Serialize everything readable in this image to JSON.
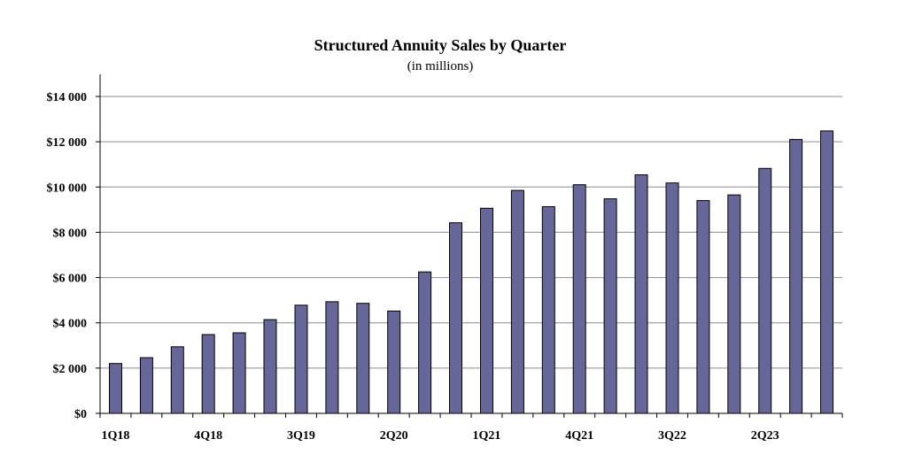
{
  "chart_data": {
    "type": "bar",
    "title": "Structured Annuity Sales by Quarter",
    "subtitle": "(in millions)",
    "xlabel": "",
    "ylabel": "",
    "categories": [
      "1Q18",
      "2Q18",
      "3Q18",
      "4Q18",
      "1Q19",
      "2Q19",
      "3Q19",
      "4Q19",
      "1Q20",
      "2Q20",
      "3Q20",
      "4Q20",
      "1Q21",
      "2Q21",
      "3Q21",
      "4Q21",
      "1Q22",
      "2Q22",
      "3Q22",
      "4Q22",
      "1Q23",
      "2Q23",
      "3Q23",
      "4Q23"
    ],
    "x_tick_labels": [
      "1Q18",
      "4Q18",
      "3Q19",
      "2Q20",
      "1Q21",
      "4Q21",
      "3Q22",
      "2Q23"
    ],
    "values": [
      2200,
      2460,
      2940,
      3480,
      3560,
      4140,
      4780,
      4930,
      4860,
      4520,
      6250,
      8420,
      9060,
      9850,
      9130,
      10100,
      9480,
      10540,
      10180,
      9400,
      9650,
      10820,
      12100,
      12480
    ],
    "ylim": [
      0,
      14000
    ],
    "y_ticks": [
      0,
      2000,
      4000,
      6000,
      8000,
      10000,
      12000,
      14000
    ],
    "y_tick_labels": [
      "$0",
      "$2 000",
      "$4 000",
      "$6 000",
      "$8 000",
      "$10 000",
      "$12 000",
      "$14 000"
    ],
    "bar_color": "#666699",
    "grid": true,
    "legend": "none"
  }
}
